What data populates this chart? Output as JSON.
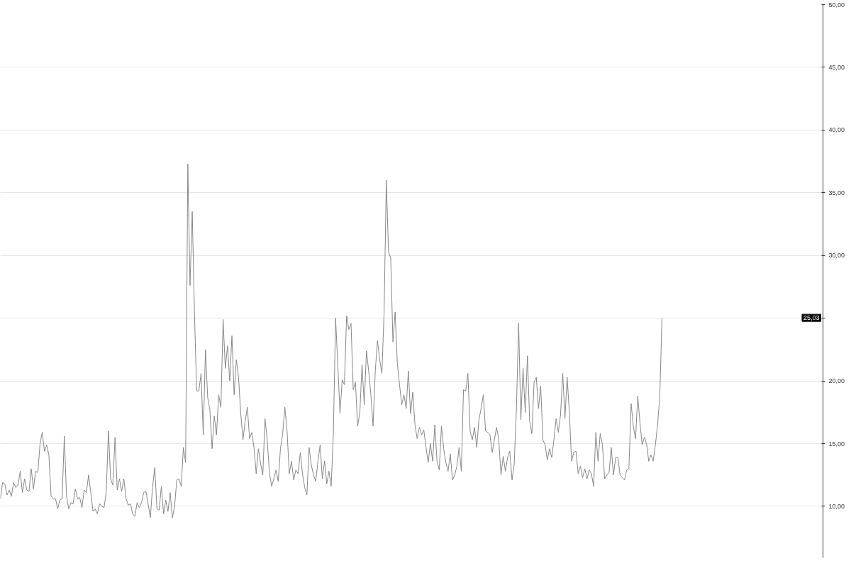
{
  "chart_data": {
    "type": "line",
    "ylim": [
      5.9,
      50
    ],
    "categories": [
      null,
      null,
      null,
      null,
      null,
      null,
      null,
      null,
      null,
      null,
      null,
      null,
      null,
      null,
      null,
      null,
      null,
      null,
      null,
      null,
      null,
      null,
      null,
      null,
      null,
      null,
      null,
      null,
      null,
      null,
      null,
      null,
      null,
      null,
      null,
      null,
      null,
      null,
      null,
      null,
      null,
      null,
      null,
      null,
      null,
      null,
      null,
      null,
      null,
      null,
      null,
      null,
      null,
      null,
      null,
      null,
      null,
      null,
      null,
      null,
      null,
      null,
      null,
      null,
      null,
      null,
      null,
      null,
      null,
      null,
      null,
      null,
      null,
      null,
      null,
      null,
      null,
      null,
      null,
      null,
      null,
      null,
      null,
      null,
      null,
      null,
      null,
      null,
      null,
      null,
      null,
      null,
      null,
      null,
      null,
      null,
      null,
      null,
      null,
      null,
      null,
      null,
      null,
      null,
      null,
      null,
      null,
      null,
      null,
      null,
      null,
      null,
      null,
      null,
      null,
      null,
      null,
      null,
      null,
      null,
      null,
      null,
      null,
      null,
      null,
      null,
      null,
      null,
      null,
      null,
      null,
      null,
      null,
      null,
      null,
      null,
      null,
      null,
      null,
      null,
      null,
      null,
      null,
      null,
      null,
      null,
      null,
      null,
      null,
      null,
      null,
      null,
      null,
      null,
      null,
      null,
      null,
      null,
      null,
      null,
      null,
      null,
      null,
      null,
      null,
      null,
      null,
      null,
      null,
      null,
      null,
      null,
      null,
      null,
      null,
      null,
      null,
      null,
      null,
      null,
      null,
      null,
      null,
      null,
      null,
      null,
      null,
      null,
      null,
      null,
      null,
      null,
      null,
      null,
      null,
      null,
      null,
      null,
      null,
      null,
      null,
      null,
      null,
      null,
      null,
      null,
      null,
      null,
      null,
      null,
      null,
      null,
      null,
      null,
      null,
      null,
      null,
      null,
      null,
      null,
      null,
      null,
      null,
      null,
      null,
      null,
      null,
      null,
      null,
      null,
      null,
      null,
      null,
      null,
      null,
      null,
      null,
      null,
      null,
      null,
      null,
      null,
      null,
      null,
      null,
      null,
      null,
      null,
      null,
      null,
      null,
      null,
      null,
      null,
      null,
      null,
      null,
      null,
      null,
      null,
      null,
      null,
      null,
      null,
      null,
      null,
      null,
      null,
      null,
      null,
      null,
      null,
      null,
      null,
      null,
      null,
      null,
      null,
      null,
      null,
      null,
      null,
      null,
      null,
      null,
      null,
      null,
      null,
      null,
      null,
      null,
      null,
      null,
      null,
      null,
      null,
      null,
      null,
      null,
      null,
      null,
      null,
      null,
      null,
      null,
      null,
      null,
      null,
      null,
      null,
      null,
      null,
      null,
      null,
      null,
      null,
      null,
      null,
      null,
      null,
      null,
      null,
      null,
      null,
      null,
      null,
      null,
      null,
      null,
      null,
      null,
      null,
      null,
      null,
      null,
      null,
      null,
      null,
      null,
      null,
      null,
      null,
      null,
      null,
      null,
      null,
      null,
      null,
      null,
      null,
      null,
      null,
      null,
      null,
      null,
      null,
      null,
      null,
      null,
      null,
      null,
      null,
      null,
      null,
      null,
      null,
      null,
      null,
      null,
      null,
      null,
      null,
      null,
      null
    ],
    "yticks": [
      {
        "value": 10,
        "label": "10,00"
      },
      {
        "value": 15,
        "label": "15,00"
      },
      {
        "value": 20,
        "label": "20,00"
      },
      {
        "value": 25,
        "label": null
      },
      {
        "value": 30,
        "label": "30,00"
      },
      {
        "value": 35,
        "label": "35,00"
      },
      {
        "value": 40,
        "label": "40,00"
      },
      {
        "value": 45,
        "label": "45,00"
      },
      {
        "value": 50,
        "label": "50,00"
      }
    ],
    "grid": "y",
    "tick_labels": "y",
    "line_style": "solid",
    "series": [
      {
        "color": "#888888",
        "values": [
          10.6,
          11.9,
          11.8,
          10.9,
          11.3,
          10.8,
          11.9,
          11.5,
          11.7,
          12.8,
          11.1,
          12.2,
          11.3,
          11.2,
          13.0,
          11.4,
          12.8,
          12.7,
          15.0,
          15.9,
          14.4,
          14.9,
          14.1,
          10.8,
          10.6,
          10.6,
          9.8,
          10.5,
          10.6,
          15.6,
          10.8,
          9.8,
          10.3,
          10.2,
          11.4,
          10.6,
          10.7,
          9.9,
          11.3,
          11.1,
          12.5,
          11.1,
          9.6,
          9.8,
          9.4,
          10.2,
          10.0,
          9.9,
          11.1,
          16.0,
          12.2,
          11.7,
          15.5,
          11.3,
          12.2,
          11.2,
          12.2,
          10.6,
          10.1,
          10.2,
          9.4,
          9.2,
          10.3,
          9.9,
          10.3,
          11.1,
          11.2,
          10.2,
          9.1,
          11.5,
          13.1,
          9.8,
          9.7,
          11.6,
          9.4,
          10.5,
          9.6,
          11.1,
          9.1,
          10.0,
          12.1,
          12.2,
          11.6,
          14.7,
          13.5,
          37.3,
          27.6,
          33.5,
          25.5,
          19.2,
          19.2,
          20.6,
          15.7,
          22.5,
          18.7,
          17.7,
          14.6,
          17.2,
          15.7,
          18.9,
          17.9,
          24.9,
          21.0,
          22.8,
          20.0,
          23.6,
          18.9,
          21.7,
          20.3,
          17.4,
          15.3,
          16.8,
          17.9,
          15.4,
          15.9,
          14.7,
          12.6,
          14.6,
          13.4,
          12.5,
          17.0,
          15.3,
          12.7,
          11.6,
          12.2,
          12.9,
          12.0,
          14.6,
          15.8,
          17.9,
          16.0,
          12.6,
          13.6,
          12.1,
          12.9,
          12.6,
          14.3,
          12.6,
          11.5,
          10.9,
          14.7,
          13.3,
          12.5,
          12.0,
          13.6,
          14.9,
          12.2,
          13.6,
          11.8,
          12.8,
          11.6,
          15.8,
          25.0,
          21.3,
          17.4,
          20.1,
          19.7,
          25.2,
          24.1,
          24.6,
          19.3,
          19.9,
          16.4,
          17.5,
          21.3,
          18.1,
          22.4,
          20.8,
          18.9,
          16.4,
          20.8,
          23.2,
          21.7,
          20.6,
          25.5,
          36.0,
          30.3,
          29.8,
          23.1,
          25.5,
          21.4,
          19.7,
          18.1,
          18.9,
          17.8,
          20.8,
          17.4,
          19.1,
          16.5,
          15.4,
          16.3,
          15.7,
          16.1,
          14.7,
          13.5,
          15.0,
          13.6,
          16.5,
          13.6,
          12.9,
          16.4,
          14.6,
          13.5,
          12.8,
          14.2,
          12.1,
          12.5,
          13.2,
          14.7,
          12.8,
          19.3,
          19.2,
          20.6,
          16.0,
          15.3,
          16.3,
          14.7,
          16.9,
          17.8,
          18.9,
          16.0,
          15.9,
          15.7,
          14.3,
          15.3,
          16.3,
          15.3,
          12.5,
          14.0,
          12.8,
          13.9,
          14.4,
          12.1,
          13.4,
          17.8,
          24.6,
          16.9,
          21.0,
          17.5,
          22.0,
          16.8,
          15.8,
          19.9,
          20.3,
          17.8,
          19.6,
          15.3,
          14.9,
          13.7,
          14.6,
          13.9,
          15.3,
          17.0,
          15.9,
          17.3,
          20.6,
          17.0,
          20.3,
          17.5,
          13.6,
          14.3,
          14.4,
          12.6,
          13.2,
          12.3,
          13.0,
          12.2,
          12.9,
          12.6,
          11.6,
          15.9,
          13.6,
          15.8,
          14.9,
          12.2,
          12.5,
          12.7,
          14.7,
          12.5,
          13.9,
          13.9,
          12.5,
          12.3,
          12.1,
          12.9,
          13.0,
          18.2,
          16.4,
          15.4,
          18.8,
          16.7,
          14.9,
          15.5,
          15.0,
          13.6,
          14.1,
          13.6,
          14.9,
          16.5,
          18.8,
          25.03,
          null,
          null,
          null,
          null,
          null,
          null,
          null,
          null,
          null,
          null,
          null,
          null,
          null,
          null,
          null,
          null,
          null,
          null,
          null,
          null,
          null,
          null,
          null,
          null,
          null,
          null,
          null,
          null,
          null,
          null,
          null,
          null,
          null,
          null,
          null,
          null,
          null,
          null,
          null,
          null,
          null,
          null,
          null,
          null,
          null,
          null,
          null,
          null,
          null,
          null,
          null,
          null,
          null,
          null,
          null,
          null,
          null,
          null,
          null,
          null,
          null,
          null,
          null,
          null,
          null,
          null,
          null,
          null,
          null,
          null,
          null,
          null,
          null
        ]
      }
    ],
    "annotations": [
      {
        "text": "25,03",
        "y": 25.03
      }
    ]
  }
}
